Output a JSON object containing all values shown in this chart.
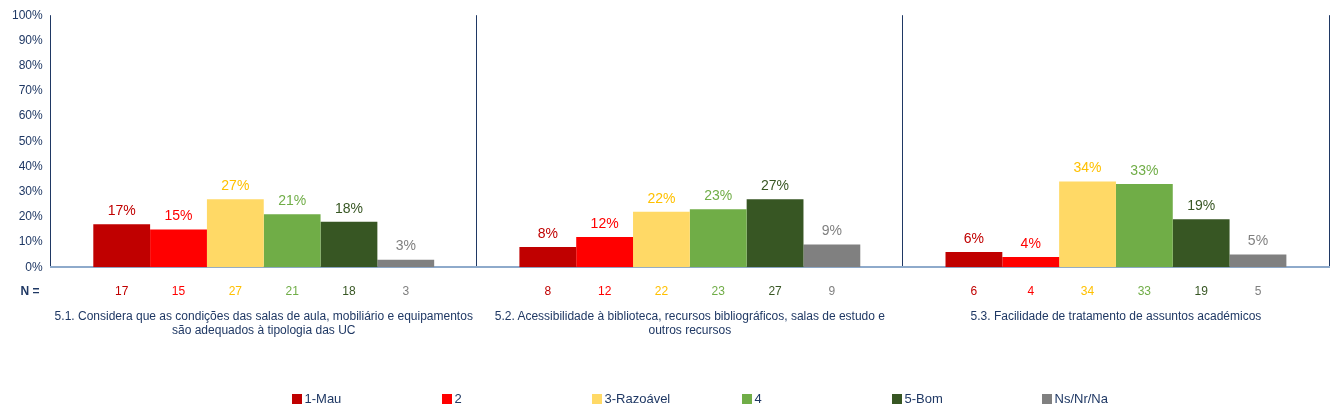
{
  "chart_data": {
    "type": "bar",
    "categories": [
      "5.1. Considera que as condições das salas de aula, mobiliário e equipamentos são adequados à tipologia das UC",
      "5.2. Acessibilidade à biblioteca, recursos bibliográficos, salas de estudo e outros recursos",
      "5.3. Facilidade de tratamento de assuntos académicos"
    ],
    "series": [
      {
        "name": "1-Mau",
        "color": "#c00000",
        "values": [
          17,
          8,
          6
        ],
        "value_labels": [
          "17%",
          "8%",
          "6%"
        ]
      },
      {
        "name": "2",
        "color": "#ff0000",
        "values": [
          15,
          12,
          4
        ],
        "value_labels": [
          "15%",
          "12%",
          "4%"
        ]
      },
      {
        "name": "3-Razoável",
        "color": "#ffd966",
        "values": [
          27,
          22,
          34
        ],
        "value_labels": [
          "27%",
          "22%",
          "34%"
        ]
      },
      {
        "name": "4",
        "color": "#70ad47",
        "values": [
          21,
          23,
          33
        ],
        "value_labels": [
          "21%",
          "23%",
          "33%"
        ]
      },
      {
        "name": "5-Bom",
        "color": "#375623",
        "values": [
          18,
          27,
          19
        ],
        "value_labels": [
          "18%",
          "27%",
          "19%"
        ]
      },
      {
        "name": "Ns/Nr/Na",
        "color": "#808080",
        "values": [
          3,
          9,
          5
        ],
        "value_labels": [
          "3%",
          "9%",
          "5%"
        ]
      }
    ],
    "ylim": [
      0,
      100
    ],
    "yticks": [
      {
        "value": 0,
        "label": "0%"
      },
      {
        "value": 10,
        "label": "10%"
      },
      {
        "value": 20,
        "label": "20%"
      },
      {
        "value": 30,
        "label": "30%"
      },
      {
        "value": 40,
        "label": "40%"
      },
      {
        "value": 50,
        "label": "50%"
      },
      {
        "value": 60,
        "label": "60%"
      },
      {
        "value": 70,
        "label": "70%"
      },
      {
        "value": 80,
        "label": "80%"
      },
      {
        "value": 90,
        "label": "90%"
      },
      {
        "value": 100,
        "label": "100%"
      }
    ],
    "annotations": [
      "N =",
      "17",
      "15",
      "27",
      "21",
      "18",
      "3",
      "8",
      "12",
      "22",
      "23",
      "27",
      "9",
      "6",
      "4",
      "34",
      "33",
      "19",
      "5"
    ],
    "grid": "x",
    "legend": "bottom"
  }
}
